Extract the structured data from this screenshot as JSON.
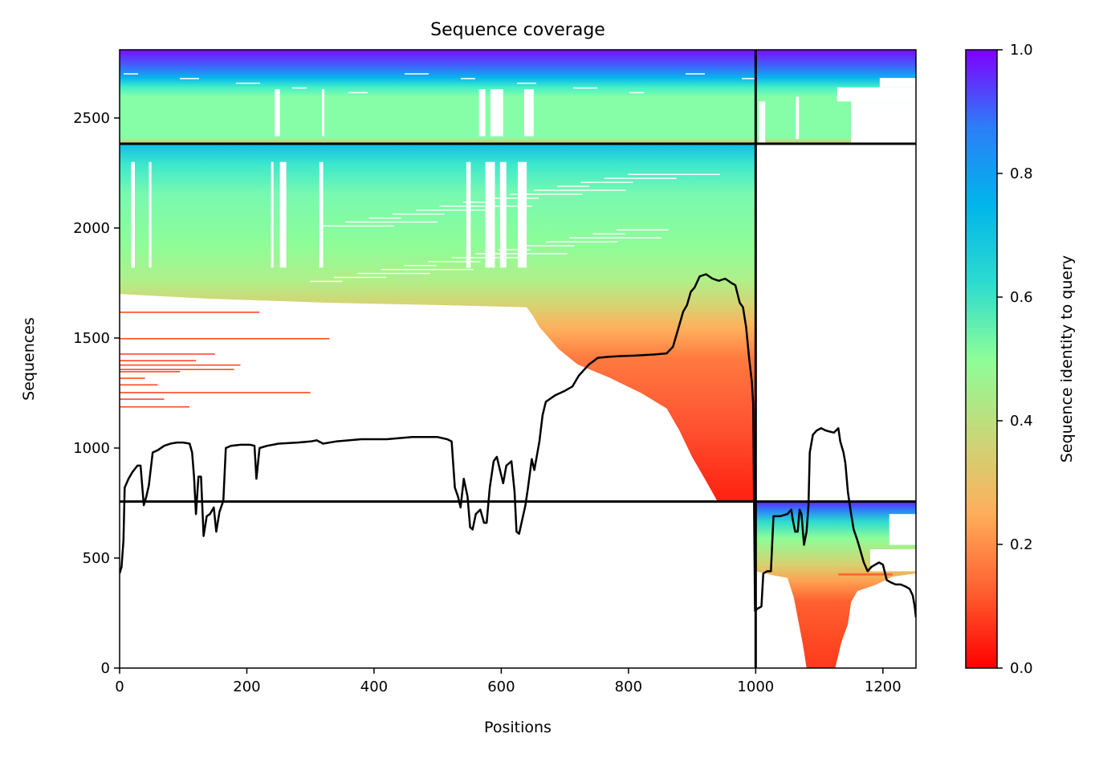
{
  "chart_data": {
    "type": "heatmap",
    "title": "Sequence coverage",
    "xlabel": "Positions",
    "ylabel": "Sequences",
    "xlim": [
      0,
      1252
    ],
    "ylim": [
      0,
      2810
    ],
    "x_ticks": [
      0,
      200,
      400,
      600,
      800,
      1000,
      1200
    ],
    "y_ticks": [
      0,
      500,
      1000,
      1500,
      2000,
      2500
    ],
    "colorbar": {
      "label": "Sequence identity to query",
      "colormap": "rainbow (red → violet)",
      "range": [
        0.0,
        1.0
      ],
      "ticks": [
        "0.0",
        "0.2",
        "0.4",
        "0.6",
        "0.8",
        "1.0"
      ],
      "colors": [
        "#ff0000",
        "#ff6030",
        "#ffae5b",
        "#c8d878",
        "#8dfd98",
        "#2bdbd0",
        "#00b5eb",
        "#2c7ef8",
        "#7f00ff"
      ]
    },
    "segment_boundaries": {
      "position": 1000,
      "sequences": [
        757,
        2383
      ]
    },
    "blocks": [
      {
        "name": "chain-A-only-top",
        "x": [
          0,
          1000
        ],
        "y": [
          2383,
          2810
        ],
        "identity_top": 0.98,
        "identity_bottom": 0.4
      },
      {
        "name": "chain-B-only-top",
        "x": [
          1000,
          1252
        ],
        "y": [
          2383,
          2810
        ],
        "identity_top": 0.98,
        "identity_bottom": 0.4
      },
      {
        "name": "chain-A-middle",
        "x": [
          0,
          1000
        ],
        "y": [
          757,
          2383
        ],
        "identity_top": 0.7,
        "identity_bottom": 0.0
      },
      {
        "name": "chain-B-bottom",
        "x": [
          1000,
          1252
        ],
        "y": [
          0,
          757
        ],
        "identity_top": 0.98,
        "identity_bottom": 0.05
      }
    ],
    "coverage_line": {
      "color": "#000000",
      "points": [
        [
          0,
          430
        ],
        [
          3,
          460
        ],
        [
          6,
          580
        ],
        [
          8,
          820
        ],
        [
          14,
          860
        ],
        [
          20,
          890
        ],
        [
          28,
          920
        ],
        [
          33,
          920
        ],
        [
          38,
          740
        ],
        [
          42,
          780
        ],
        [
          46,
          830
        ],
        [
          52,
          980
        ],
        [
          60,
          990
        ],
        [
          70,
          1010
        ],
        [
          80,
          1020
        ],
        [
          90,
          1025
        ],
        [
          100,
          1025
        ],
        [
          110,
          1020
        ],
        [
          114,
          980
        ],
        [
          117,
          870
        ],
        [
          120,
          700
        ],
        [
          124,
          870
        ],
        [
          128,
          870
        ],
        [
          132,
          600
        ],
        [
          137,
          690
        ],
        [
          142,
          700
        ],
        [
          148,
          730
        ],
        [
          152,
          620
        ],
        [
          157,
          710
        ],
        [
          163,
          760
        ],
        [
          167,
          1000
        ],
        [
          175,
          1010
        ],
        [
          190,
          1015
        ],
        [
          205,
          1015
        ],
        [
          212,
          1010
        ],
        [
          215,
          860
        ],
        [
          220,
          1000
        ],
        [
          232,
          1010
        ],
        [
          250,
          1020
        ],
        [
          280,
          1025
        ],
        [
          300,
          1030
        ],
        [
          310,
          1035
        ],
        [
          320,
          1020
        ],
        [
          340,
          1030
        ],
        [
          360,
          1035
        ],
        [
          380,
          1040
        ],
        [
          400,
          1040
        ],
        [
          420,
          1040
        ],
        [
          440,
          1045
        ],
        [
          460,
          1050
        ],
        [
          480,
          1050
        ],
        [
          500,
          1050
        ],
        [
          515,
          1040
        ],
        [
          522,
          1030
        ],
        [
          527,
          820
        ],
        [
          532,
          780
        ],
        [
          536,
          730
        ],
        [
          541,
          860
        ],
        [
          547,
          780
        ],
        [
          551,
          640
        ],
        [
          555,
          630
        ],
        [
          560,
          700
        ],
        [
          567,
          720
        ],
        [
          573,
          660
        ],
        [
          577,
          660
        ],
        [
          582,
          820
        ],
        [
          588,
          940
        ],
        [
          593,
          960
        ],
        [
          598,
          900
        ],
        [
          603,
          840
        ],
        [
          608,
          920
        ],
        [
          616,
          940
        ],
        [
          621,
          800
        ],
        [
          624,
          620
        ],
        [
          628,
          610
        ],
        [
          638,
          740
        ],
        [
          642,
          820
        ],
        [
          648,
          950
        ],
        [
          652,
          900
        ],
        [
          660,
          1030
        ],
        [
          665,
          1150
        ],
        [
          670,
          1210
        ],
        [
          685,
          1240
        ],
        [
          700,
          1260
        ],
        [
          712,
          1280
        ],
        [
          722,
          1330
        ],
        [
          738,
          1380
        ],
        [
          752,
          1410
        ],
        [
          770,
          1415
        ],
        [
          790,
          1418
        ],
        [
          810,
          1420
        ],
        [
          840,
          1425
        ],
        [
          860,
          1430
        ],
        [
          870,
          1460
        ],
        [
          880,
          1560
        ],
        [
          886,
          1620
        ],
        [
          892,
          1650
        ],
        [
          898,
          1710
        ],
        [
          904,
          1730
        ],
        [
          912,
          1780
        ],
        [
          922,
          1790
        ],
        [
          932,
          1770
        ],
        [
          942,
          1760
        ],
        [
          952,
          1770
        ],
        [
          962,
          1750
        ],
        [
          968,
          1740
        ],
        [
          975,
          1660
        ],
        [
          980,
          1640
        ],
        [
          985,
          1550
        ],
        [
          990,
          1400
        ],
        [
          994,
          1300
        ],
        [
          996,
          1200
        ],
        [
          999,
          260
        ],
        [
          1003,
          270
        ],
        [
          1009,
          280
        ],
        [
          1012,
          430
        ],
        [
          1018,
          440
        ],
        [
          1024,
          440
        ],
        [
          1028,
          690
        ],
        [
          1038,
          690
        ],
        [
          1050,
          700
        ],
        [
          1056,
          720
        ],
        [
          1058,
          680
        ],
        [
          1062,
          620
        ],
        [
          1066,
          620
        ],
        [
          1069,
          720
        ],
        [
          1072,
          700
        ],
        [
          1076,
          560
        ],
        [
          1080,
          620
        ],
        [
          1083,
          740
        ],
        [
          1085,
          980
        ],
        [
          1090,
          1060
        ],
        [
          1096,
          1080
        ],
        [
          1103,
          1090
        ],
        [
          1110,
          1080
        ],
        [
          1116,
          1075
        ],
        [
          1123,
          1070
        ],
        [
          1130,
          1090
        ],
        [
          1133,
          1030
        ],
        [
          1138,
          980
        ],
        [
          1141,
          930
        ],
        [
          1145,
          800
        ],
        [
          1150,
          700
        ],
        [
          1154,
          630
        ],
        [
          1160,
          580
        ],
        [
          1164,
          540
        ],
        [
          1170,
          480
        ],
        [
          1176,
          440
        ],
        [
          1182,
          460
        ],
        [
          1188,
          470
        ],
        [
          1194,
          480
        ],
        [
          1200,
          470
        ],
        [
          1206,
          400
        ],
        [
          1212,
          390
        ],
        [
          1220,
          380
        ],
        [
          1228,
          380
        ],
        [
          1236,
          370
        ],
        [
          1242,
          360
        ],
        [
          1247,
          330
        ],
        [
          1250,
          280
        ],
        [
          1252,
          230
        ]
      ]
    }
  }
}
